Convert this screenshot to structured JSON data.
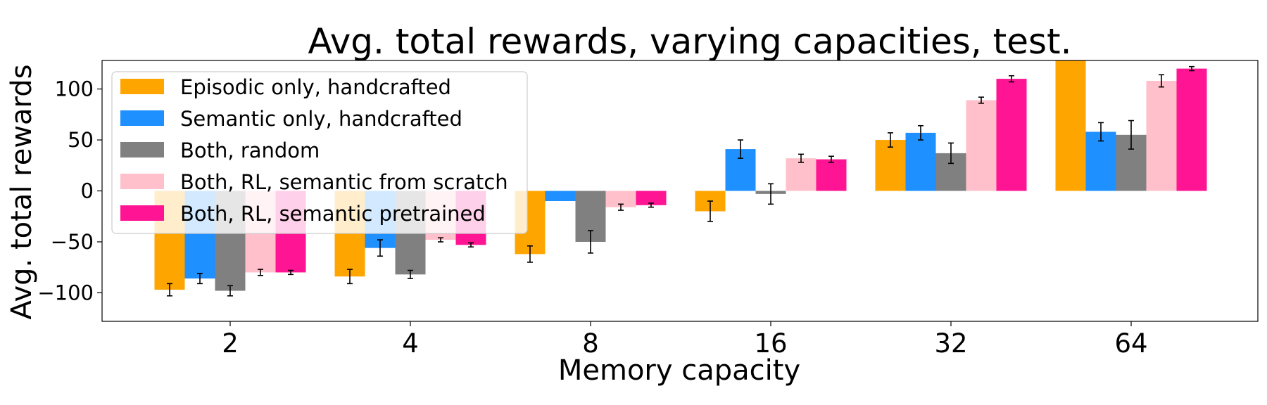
{
  "chart_data": {
    "type": "bar",
    "title": "Avg. total rewards, varying capacities, test.",
    "xlabel": "Memory capacity",
    "ylabel": "Avg. total rewards",
    "categories": [
      "2",
      "4",
      "8",
      "16",
      "32",
      "64"
    ],
    "ylim": [
      -128,
      128
    ],
    "yticks": [
      -100,
      -50,
      0,
      50,
      100
    ],
    "ytick_labels": [
      "−100",
      "−50",
      "0",
      "50",
      "100"
    ],
    "grid": false,
    "legend_position": "upper-left",
    "series": [
      {
        "name": "Episodic only, handcrafted",
        "color": "#FFA500",
        "values": [
          -97,
          -84,
          -62,
          -20,
          50,
          128
        ],
        "errors": [
          6,
          7,
          8,
          10,
          7,
          0
        ]
      },
      {
        "name": "Semantic only, handcrafted",
        "color": "#1E90FF",
        "values": [
          -86,
          -56,
          -10,
          41,
          57,
          58
        ],
        "errors": [
          5,
          8,
          0,
          9,
          7,
          9
        ]
      },
      {
        "name": "Both, random",
        "color": "#808080",
        "values": [
          -98,
          -82,
          -50,
          -3,
          37,
          55
        ],
        "errors": [
          5,
          4,
          11,
          10,
          10,
          14
        ]
      },
      {
        "name": "Both, RL, semantic from scratch",
        "color": "#FFC0CB",
        "values": [
          -80,
          -48,
          -16,
          32,
          89,
          108
        ],
        "errors": [
          3,
          2,
          3,
          4,
          3,
          6
        ]
      },
      {
        "name": "Both, RL, semantic pretrained",
        "color": "#FF1493",
        "values": [
          -80,
          -53,
          -14,
          31,
          110,
          120
        ],
        "errors": [
          2,
          2,
          2,
          3,
          3,
          2
        ]
      }
    ]
  }
}
